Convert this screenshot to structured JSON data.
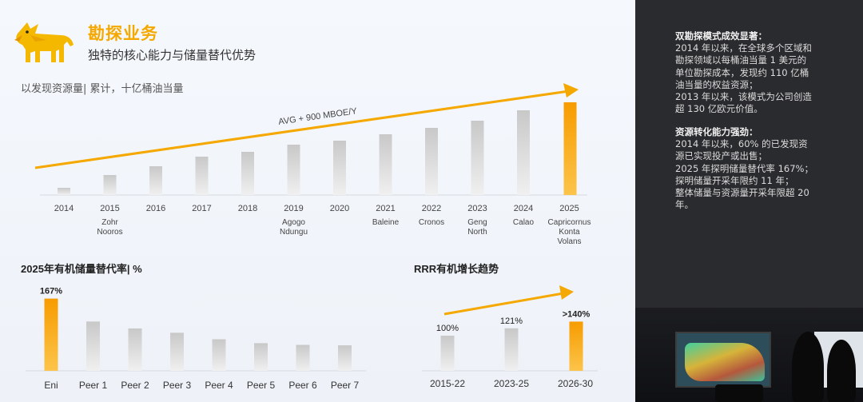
{
  "header": {
    "title": "勘探业务",
    "subtitle": "独特的核心能力与储量替代优势"
  },
  "colors": {
    "accent": "#f5a800",
    "bar_gray": "#cfcfcf",
    "bar_highlight": "#f7a100",
    "panel_bg": "#2a2b2e"
  },
  "icons": {
    "logo": "six-legged-dog-logo"
  },
  "chart_data": [
    {
      "type": "bar",
      "title": "以发现资源量| 累计，十亿桶油当量",
      "annotation": "AVG + 900 MBOE/Y",
      "categories": [
        "2014",
        "2015",
        "2016",
        "2017",
        "2018",
        "2019",
        "2020",
        "2021",
        "2022",
        "2023",
        "2024",
        "2025"
      ],
      "category_sublabels": [
        "",
        "Zohr\nNooros",
        "",
        "",
        "",
        "Agogo\nNdungu",
        "",
        "Baleine",
        "Cronos",
        "Geng\nNorth",
        "Calao",
        "Capricornus\nKonta\nVolans"
      ],
      "values": [
        0.9,
        2.5,
        3.6,
        4.8,
        5.4,
        6.3,
        6.8,
        7.6,
        8.4,
        9.3,
        10.6,
        11.6
      ],
      "highlight_index": 11,
      "ylim": [
        0,
        12
      ]
    },
    {
      "type": "bar",
      "title": "2025年有机储量替代率| %",
      "categories": [
        "Eni",
        "Peer 1",
        "Peer 2",
        "Peer 3",
        "Peer 4",
        "Peer 5",
        "Peer 6",
        "Peer 7"
      ],
      "values": [
        167,
        114,
        98,
        88,
        73,
        64,
        60,
        59
      ],
      "labels": [
        "167%",
        "",
        "",
        "",
        "",
        "",
        "",
        ""
      ],
      "highlight_index": 0,
      "ylim": [
        0,
        170
      ]
    },
    {
      "type": "bar",
      "title": "RRR有机增长趋势",
      "categories": [
        "2015-22",
        "2023-25",
        "2026-30"
      ],
      "values": [
        100,
        121,
        140
      ],
      "labels": [
        "100%",
        "121%",
        ">140%"
      ],
      "highlight_index": 2,
      "ylim": [
        0,
        150
      ]
    }
  ],
  "panel": {
    "block1": {
      "heading": "双勘探模式成效显著：",
      "lines": [
        "2014 年以来，在全球多个区域和",
        "勘探领域以每桶油当量 1 美元的",
        "单位勘探成本，发现约 110 亿桶",
        "油当量的权益资源；",
        "2013 年以来，该模式为公司创造",
        "超 130 亿欧元价值。"
      ]
    },
    "block2": {
      "heading": "资源转化能力强劲：",
      "lines": [
        "2014 年以来，60% 的已发现资",
        "源已实现投产或出售；",
        "2025 年探明储量替代率 167%；",
        "探明储量开采年限约 11 年；",
        "整体储量与资源量开采年限超 20",
        "年。"
      ]
    }
  }
}
